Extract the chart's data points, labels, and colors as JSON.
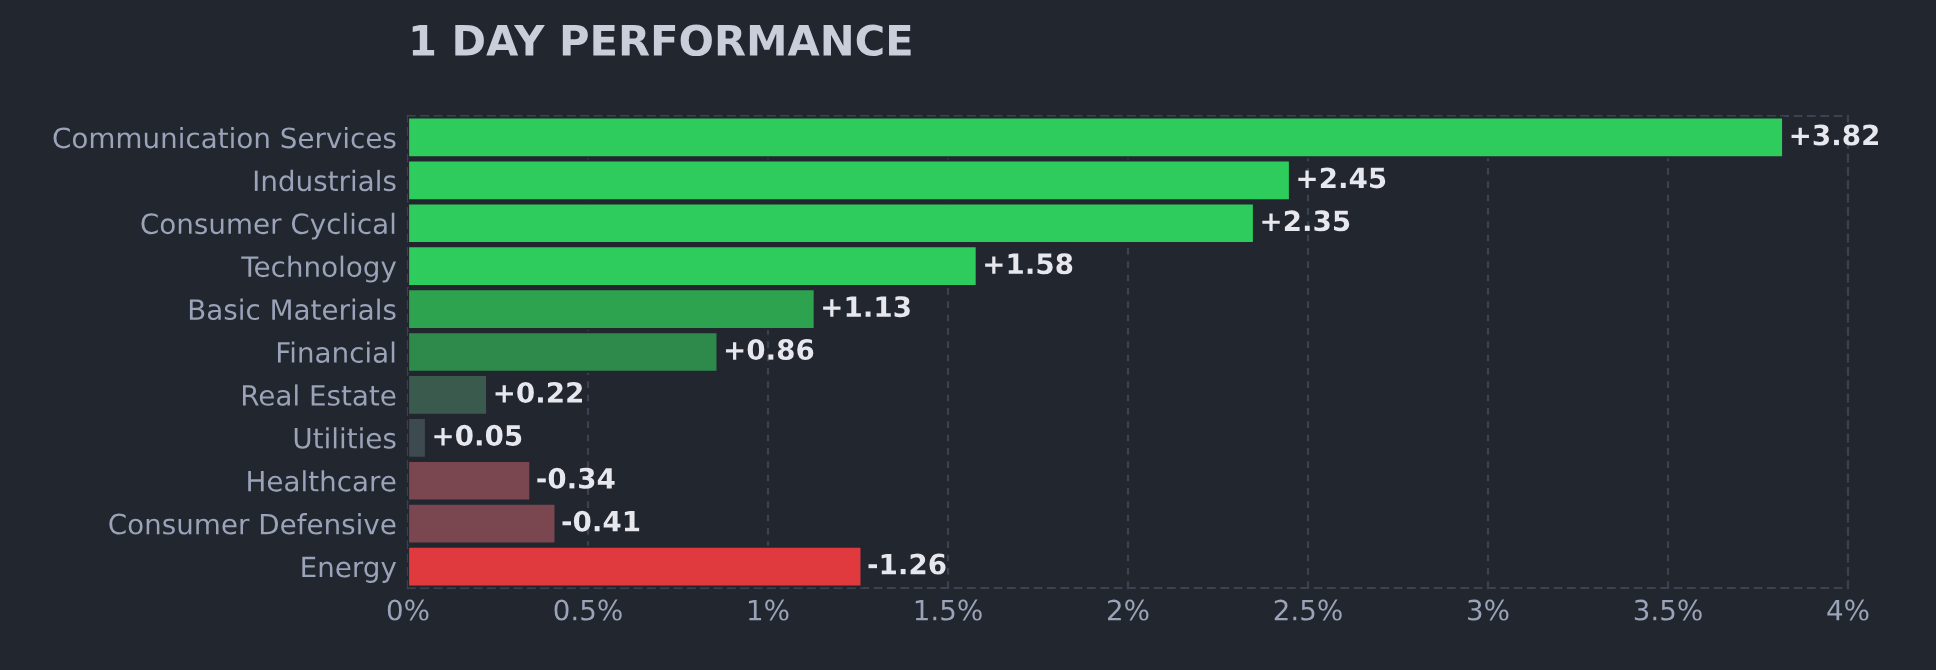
{
  "chart_data": {
    "type": "bar",
    "orientation": "horizontal",
    "title": "1 DAY PERFORMANCE",
    "categories": [
      "Communication Services",
      "Industrials",
      "Consumer Cyclical",
      "Technology",
      "Basic Materials",
      "Financial",
      "Real Estate",
      "Utilities",
      "Healthcare",
      "Consumer Defensive",
      "Energy"
    ],
    "values": [
      3.82,
      2.45,
      2.35,
      1.58,
      1.13,
      0.86,
      0.22,
      0.05,
      -0.34,
      -0.41,
      -1.26
    ],
    "base": [
      0,
      0,
      0,
      0,
      0,
      0,
      0,
      0,
      0.34,
      0.41,
      1.26
    ],
    "value_labels": [
      "+3.82",
      "+2.45",
      "+2.35",
      "+1.58",
      "+1.13",
      "+0.86",
      "+0.22",
      "+0.05",
      "-0.34",
      "-0.41",
      "-1.26"
    ],
    "colors": [
      "#2ecc5c",
      "#2ecc5c",
      "#2ecc5c",
      "#2ecc5c",
      "#2da24f",
      "#2d8a4a",
      "#3b5a4e",
      "#3d4a50",
      "#7a4650",
      "#7a4650",
      "#e0393e"
    ],
    "xlim": [
      0,
      4
    ],
    "xticks": [
      {
        "value": 0,
        "label": "0%"
      },
      {
        "value": 0.5,
        "label": "0.5%"
      },
      {
        "value": 1,
        "label": "1%"
      },
      {
        "value": 1.5,
        "label": "1.5%"
      },
      {
        "value": 2,
        "label": "2%"
      },
      {
        "value": 2.5,
        "label": "2.5%"
      },
      {
        "value": 3,
        "label": "3%"
      },
      {
        "value": 3.5,
        "label": "3.5%"
      },
      {
        "value": 4,
        "label": "4%"
      }
    ],
    "grid": "x",
    "legend": false
  }
}
